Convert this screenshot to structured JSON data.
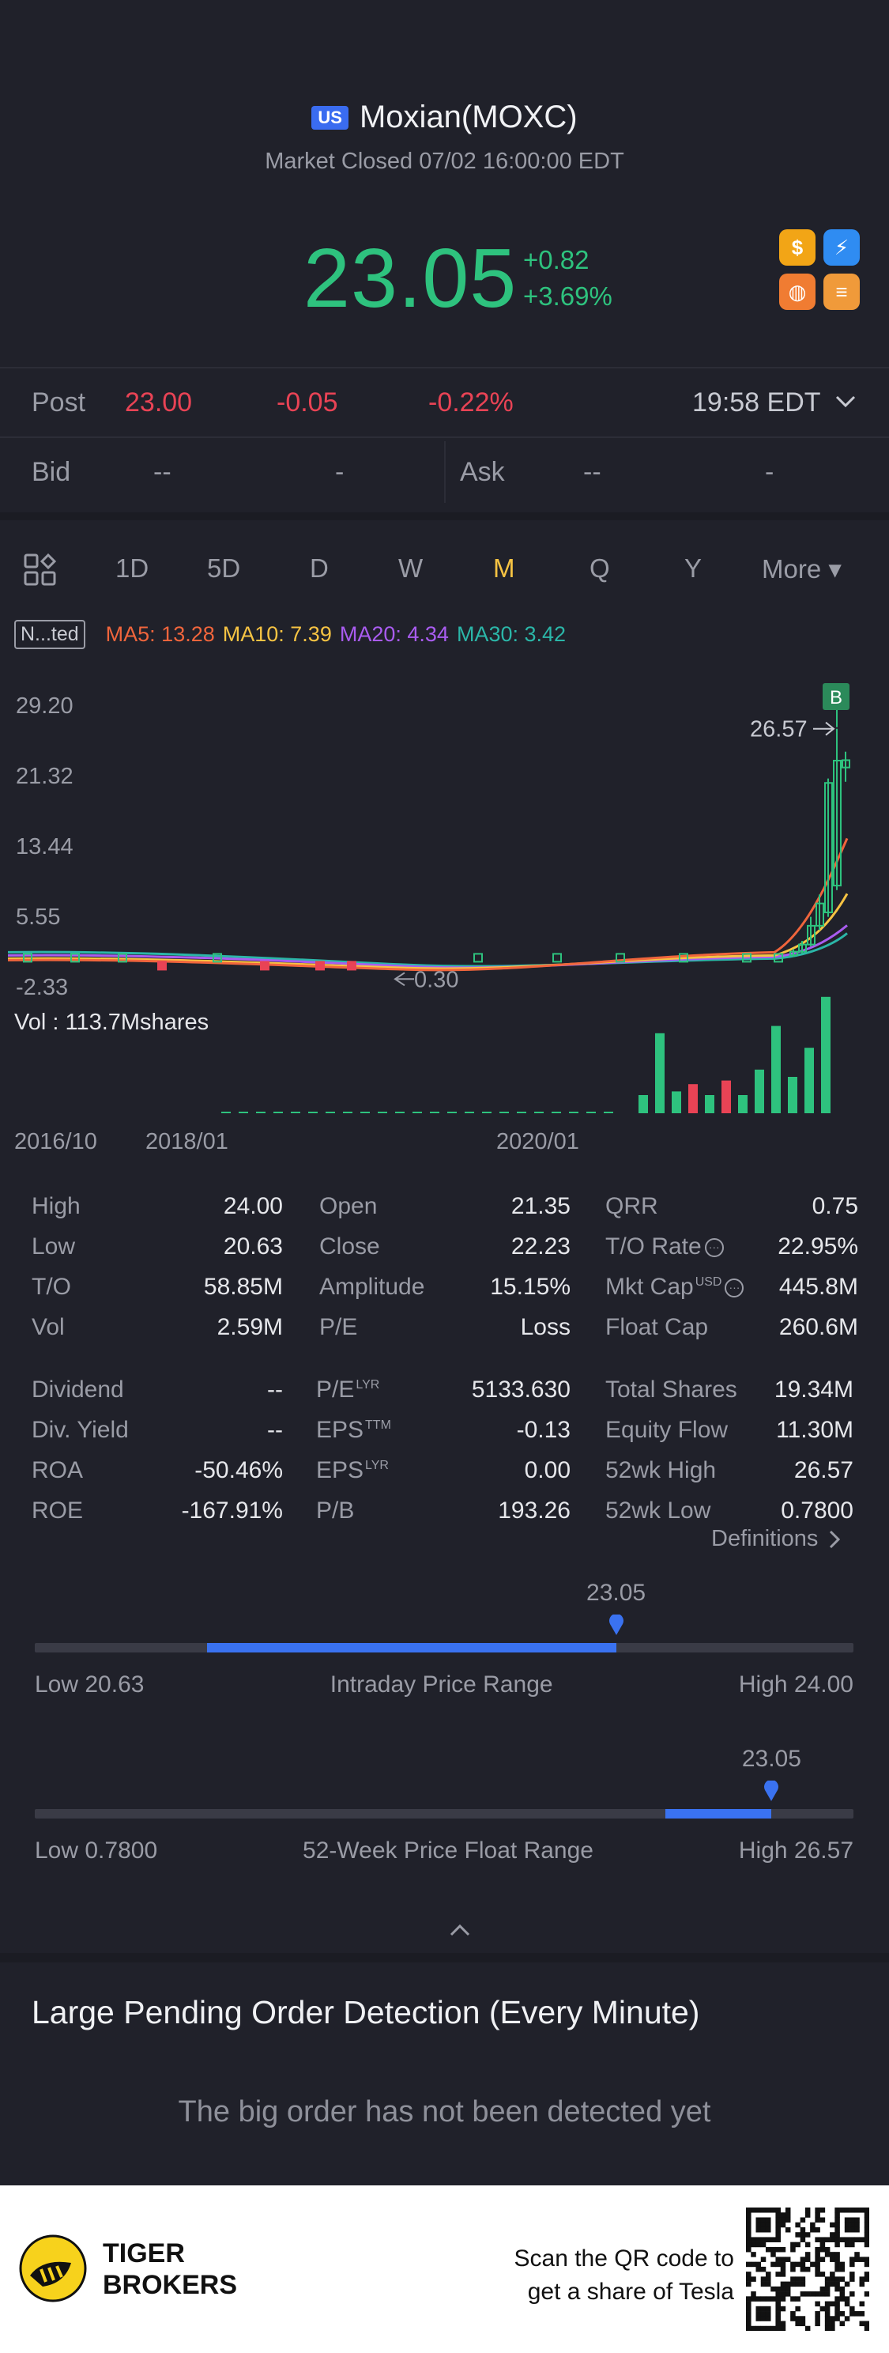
{
  "header": {
    "market_badge": "US",
    "title": "Moxian(MOXC)",
    "status": "Market Closed 07/02 16:00:00 EDT",
    "price": "23.05",
    "change_abs": "+0.82",
    "change_pct": "+3.69%",
    "price_color": "#2ec27e"
  },
  "quick_icons": [
    {
      "name": "dollar-icon",
      "glyph": "$",
      "color": "#f2a516"
    },
    {
      "name": "lightning-icon",
      "glyph": "⚡",
      "color": "#2f8cf2"
    },
    {
      "name": "basketball-icon",
      "glyph": "◍",
      "color": "#f07c32"
    },
    {
      "name": "stack-icon",
      "glyph": "≡",
      "color": "#f09a3a"
    }
  ],
  "post": {
    "label": "Post",
    "price": "23.00",
    "change": "-0.05",
    "change_pct": "-0.22%",
    "time": "19:58 EDT"
  },
  "bid": {
    "label": "Bid",
    "price": "--",
    "size": "-",
    "ask_label": "Ask",
    "ask_price": "--",
    "ask_size": "-"
  },
  "tabs": [
    "1D",
    "5D",
    "D",
    "W",
    "M",
    "Q",
    "Y",
    "More ▾"
  ],
  "active_tab": "M",
  "ma": {
    "adjust": "N...ted",
    "ma5": "MA5: 13.28",
    "ma10": "MA10: 7.39",
    "ma20": "MA20: 4.34",
    "ma30": "MA30: 3.42",
    "colors": {
      "ma5": "#f0653c",
      "ma10": "#f6c343",
      "ma20": "#a95cf0",
      "ma30": "#2bb6a8"
    }
  },
  "chart_data": {
    "type": "candlestick",
    "y_ticks": [
      "29.20",
      "21.32",
      "13.44",
      "5.55",
      "-2.33"
    ],
    "x_ticks": [
      "2016/10",
      "2018/01",
      "2020/01"
    ],
    "annotations": {
      "high_label": "26.57",
      "low_label": "0.30",
      "buy_marker": "B"
    },
    "volume_label": "Vol  : 113.7Mshares",
    "recent_candles": [
      {
        "open": 1.2,
        "close": 1.6,
        "high": 1.9,
        "low": 1.0
      },
      {
        "open": 1.6,
        "close": 2.4,
        "high": 2.8,
        "low": 1.4
      },
      {
        "open": 2.4,
        "close": 4.5,
        "high": 5.5,
        "low": 2.2
      },
      {
        "open": 4.5,
        "close": 7.0,
        "high": 8.0,
        "low": 4.0
      },
      {
        "open": 6.0,
        "close": 20.5,
        "high": 21.0,
        "low": 5.5
      },
      {
        "open": 9.0,
        "close": 23.0,
        "high": 26.57,
        "low": 8.5
      },
      {
        "open": 22.23,
        "close": 23.05,
        "high": 24.0,
        "low": 20.63
      }
    ],
    "recent_volumes": [
      5,
      22,
      6,
      8,
      5,
      9,
      5,
      12,
      24,
      10,
      18,
      32
    ]
  },
  "stats": {
    "col1": [
      {
        "label": "High",
        "value": "24.00"
      },
      {
        "label": "Low",
        "value": "20.63"
      },
      {
        "label": "T/O",
        "value": "58.85M"
      },
      {
        "label": "Vol",
        "value": "2.59M"
      }
    ],
    "col2": [
      {
        "label": "Open",
        "value": "21.35"
      },
      {
        "label": "Close",
        "value": "22.23"
      },
      {
        "label": "Amplitude",
        "value": "15.15%"
      },
      {
        "label": "P/E",
        "value": "Loss"
      }
    ],
    "col3": [
      {
        "label": "QRR",
        "value": "0.75"
      },
      {
        "label": "T/O Rate",
        "value": "22.95%"
      },
      {
        "label": "Mkt Cap",
        "value": "445.8M"
      },
      {
        "label": "Float Cap",
        "value": "260.6M"
      }
    ],
    "col4": [
      {
        "label": "Dividend",
        "value": "--"
      },
      {
        "label": "Div. Yield",
        "value": "--"
      },
      {
        "label": "ROA",
        "value": "-50.46%"
      },
      {
        "label": "ROE",
        "value": "-167.91%"
      }
    ],
    "col5": [
      {
        "label": "P/E",
        "sup": "LYR",
        "value": "5133.630"
      },
      {
        "label": "EPS",
        "sup": "TTM",
        "value": "-0.13"
      },
      {
        "label": "EPS",
        "sup": "LYR",
        "value": "0.00"
      },
      {
        "label": "P/B",
        "value": "193.26"
      }
    ],
    "col6": [
      {
        "label": "Total Shares",
        "value": "19.34M"
      },
      {
        "label": "Equity Flow",
        "value": "11.30M"
      },
      {
        "label": "52wk High",
        "value": "26.57"
      },
      {
        "label": "52wk Low",
        "value": "0.7800"
      }
    ],
    "mkt_cap_currency": "USD",
    "definitions": "Definitions"
  },
  "intraday_range": {
    "current": "23.05",
    "low_label": "Low 20.63",
    "title": "Intraday Price Range",
    "high_label": "High 24.00",
    "fill_start": 0.21,
    "fill_end": 0.71
  },
  "week52_range": {
    "current": "23.05",
    "low_label": "Low 0.7800",
    "title": "52-Week Price Float Range",
    "high_label": "High 26.57",
    "fill_start": 0.77,
    "fill_end": 0.9
  },
  "large_order": {
    "title": "Large Pending Order Detection (Every Minute)",
    "message": "The big order has not been detected yet"
  },
  "footer": {
    "brand_line1": "TIGER",
    "brand_line2": "BROKERS",
    "text_line1": "Scan the QR code to",
    "text_line2": "get a share of Tesla"
  }
}
